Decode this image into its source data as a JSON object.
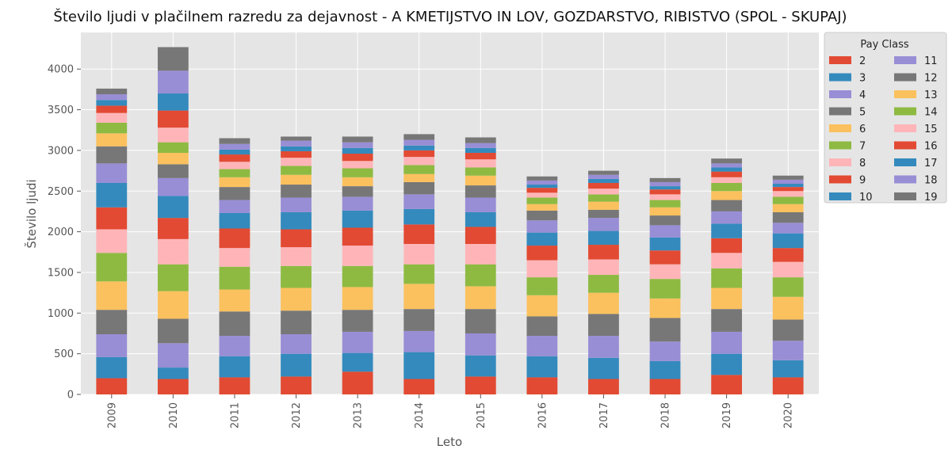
{
  "chart_data": {
    "type": "bar",
    "stacked": true,
    "title": "Število ljudi v plačilnem razredu za dejavnost - A KMETIJSTVO IN LOV, GOZDARSTVO, RIBISTVO (SPOL - SKUPAJ)",
    "xlabel": "Leto",
    "ylabel": "Število ljudi",
    "ylim": [
      0,
      4450
    ],
    "yticks": [
      0,
      500,
      1000,
      1500,
      2000,
      2500,
      3000,
      3500,
      4000
    ],
    "grid": true,
    "legend_title": "Pay Class",
    "legend_position": "top-right, outside",
    "categories": [
      "2009",
      "2010",
      "2011",
      "2012",
      "2013",
      "2014",
      "2015",
      "2016",
      "2017",
      "2018",
      "2019",
      "2020"
    ],
    "series": [
      {
        "name": "2",
        "color": "#E24A33",
        "values": [
          200,
          190,
          210,
          220,
          280,
          190,
          220,
          210,
          190,
          190,
          240,
          210
        ]
      },
      {
        "name": "3",
        "color": "#348ABD",
        "values": [
          260,
          140,
          260,
          280,
          230,
          330,
          260,
          260,
          260,
          220,
          260,
          210
        ]
      },
      {
        "name": "4",
        "color": "#988ED5",
        "values": [
          280,
          300,
          250,
          240,
          260,
          260,
          270,
          250,
          270,
          240,
          270,
          240
        ]
      },
      {
        "name": "5",
        "color": "#777777",
        "values": [
          300,
          300,
          300,
          290,
          270,
          270,
          300,
          240,
          270,
          290,
          280,
          260
        ]
      },
      {
        "name": "6",
        "color": "#FBC15E",
        "values": [
          350,
          340,
          270,
          280,
          280,
          310,
          280,
          260,
          260,
          240,
          260,
          280
        ]
      },
      {
        "name": "7",
        "color": "#8EBA42",
        "values": [
          350,
          330,
          280,
          270,
          260,
          240,
          270,
          220,
          220,
          240,
          240,
          240
        ]
      },
      {
        "name": "8",
        "color": "#FFB5B8",
        "values": [
          290,
          310,
          230,
          230,
          250,
          250,
          250,
          210,
          190,
          180,
          190,
          190
        ]
      },
      {
        "name": "9",
        "color": "#E24A33",
        "values": [
          270,
          260,
          240,
          220,
          220,
          240,
          210,
          180,
          180,
          170,
          180,
          170
        ]
      },
      {
        "name": "10",
        "color": "#348ABD",
        "values": [
          300,
          270,
          190,
          210,
          210,
          190,
          180,
          160,
          170,
          160,
          180,
          180
        ]
      },
      {
        "name": "11",
        "color": "#988ED5",
        "values": [
          240,
          220,
          160,
          180,
          170,
          180,
          180,
          150,
          160,
          150,
          150,
          130
        ]
      },
      {
        "name": "12",
        "color": "#777777",
        "values": [
          210,
          170,
          160,
          160,
          130,
          150,
          150,
          120,
          100,
          120,
          140,
          130
        ]
      },
      {
        "name": "13",
        "color": "#FBC15E",
        "values": [
          160,
          140,
          120,
          120,
          110,
          100,
          120,
          80,
          100,
          100,
          110,
          100
        ]
      },
      {
        "name": "14",
        "color": "#8EBA42",
        "values": [
          130,
          130,
          100,
          110,
          110,
          110,
          100,
          80,
          90,
          90,
          100,
          90
        ]
      },
      {
        "name": "15",
        "color": "#FFB5B8",
        "values": [
          120,
          180,
          90,
          100,
          90,
          100,
          100,
          60,
          70,
          70,
          70,
          70
        ]
      },
      {
        "name": "16",
        "color": "#E24A33",
        "values": [
          90,
          210,
          90,
          80,
          90,
          80,
          80,
          60,
          70,
          60,
          70,
          50
        ]
      },
      {
        "name": "17",
        "color": "#348ABD",
        "values": [
          70,
          210,
          60,
          60,
          70,
          60,
          60,
          40,
          50,
          40,
          50,
          40
        ]
      },
      {
        "name": "18",
        "color": "#988ED5",
        "values": [
          70,
          280,
          70,
          70,
          70,
          70,
          60,
          50,
          50,
          50,
          50,
          50
        ]
      },
      {
        "name": "19",
        "color": "#777777",
        "values": [
          70,
          290,
          70,
          50,
          70,
          70,
          70,
          50,
          50,
          50,
          60,
          50
        ]
      }
    ]
  }
}
